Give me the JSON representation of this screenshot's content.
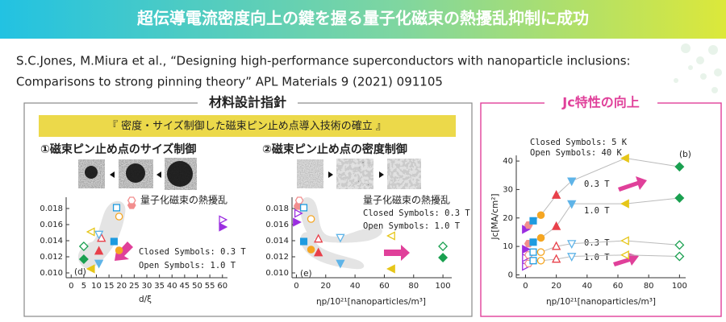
{
  "header": {
    "title": "超伝導電流密度向上の鍵を握る量子化磁束の熱擾乱抑制に成功"
  },
  "citation": [
    "S.C.Jones, M.Miura et al., “Designing high-performance superconductors with nanoparticle inclusions:",
    "Comparisons to strong pinning theory” APL Materials 9 (2021) 091105"
  ],
  "left_panel": {
    "title": "材料設計指針",
    "banner": "『 密度・サイズ制御した磁束ピン止め点導入技術の確立 』",
    "sections": [
      "①磁束ピン止め点のサイズ制御",
      "②磁束ピン止め点の密度制御"
    ]
  },
  "right_panel": {
    "title": "Jc特性の向上"
  },
  "chart_data": [
    {
      "type": "scatter",
      "panel_label": "(d)",
      "xlabel": "d/ξ",
      "annotations": [
        "量子化磁束の熱擾乱",
        "Closed Symbols: 0.3 T",
        "Open Symbols:   1.0 T"
      ],
      "xlim": [
        -2,
        62
      ],
      "xticks": [
        0,
        5,
        10,
        15,
        20,
        25,
        30,
        35,
        40,
        45,
        50,
        55,
        60
      ],
      "ylim": [
        0.0094,
        0.0194
      ],
      "yticks": [
        {
          "value": 0.01,
          "label": "0.010"
        },
        0.012,
        0.014,
        0.016,
        0.018
      ],
      "markers": [
        "tri-right",
        "hexagon",
        "square",
        "circle",
        "tri-up",
        "tri-down",
        "tri-left",
        "diamond"
      ],
      "colors": [
        "#9b2ee0",
        "#f28e8e",
        "#1e9be0",
        "#f5a623",
        "#e8404a",
        "#5fb4e8",
        "#e6c619",
        "#1aa050"
      ],
      "series": [
        {
          "filled": true,
          "x": [
            60,
            24,
            17,
            19,
            11,
            11,
            8,
            5
          ],
          "values": [
            0.0157,
            0.0184,
            0.0139,
            0.0128,
            0.0127,
            0.0112,
            0.0105,
            0.0117
          ]
        },
        {
          "filled": false,
          "x": [
            60,
            24,
            18,
            19,
            12,
            11,
            8,
            5
          ],
          "values": [
            0.0166,
            0.019,
            0.0181,
            0.017,
            0.0143,
            0.0148,
            0.0151,
            0.0133
          ]
        }
      ]
    },
    {
      "type": "scatter",
      "panel_label": "(e)",
      "xlabel": "ηp/10²¹[nanoparticles/m³]",
      "annotations": [
        "量子化磁束の熱擾乱",
        "Closed Symbols: 0.3 T",
        "Open Symbols:   1.0 T"
      ],
      "xlim": [
        -3,
        106
      ],
      "xticks": [
        0,
        20,
        40,
        60,
        80,
        100
      ],
      "ylim": [
        0.0094,
        0.0194
      ],
      "yticks": [
        {
          "value": 0.01,
          "label": "0.010"
        },
        0.012,
        0.014,
        0.016,
        0.018
      ],
      "markers": [
        "tri-right",
        "hexagon",
        "square",
        "circle",
        "tri-up",
        "tri-down",
        "tri-left",
        "diamond"
      ],
      "colors": [
        "#9b2ee0",
        "#f28e8e",
        "#1e9be0",
        "#f5a623",
        "#e8404a",
        "#5fb4e8",
        "#e6c619",
        "#1aa050"
      ],
      "series": [
        {
          "filled": true,
          "x": [
            0,
            1,
            5,
            10,
            15,
            30,
            65,
            100
          ],
          "values": [
            0.0163,
            0.0183,
            0.0139,
            0.0129,
            0.0125,
            0.0112,
            0.0105,
            0.0119
          ]
        },
        {
          "filled": false,
          "x": [
            1,
            2,
            5,
            10,
            15,
            30,
            65,
            100
          ],
          "values": [
            0.0174,
            0.019,
            0.0181,
            0.0167,
            0.0142,
            0.0144,
            0.0146,
            0.0133
          ]
        }
      ]
    },
    {
      "type": "line",
      "panel_label": "(b)",
      "xlabel": "ηp/10²¹[nanoparticles/m³]",
      "ylabel": "Jc[MA/cm²]",
      "annotations": [
        "Closed Symbols: 5 K",
        "Open Symbols: 40 K",
        "0.3 T",
        "1.0 T",
        "0.3 T",
        "1.0 T"
      ],
      "xlim": [
        -6,
        104
      ],
      "xticks": [
        0,
        20,
        40,
        60,
        80,
        100
      ],
      "ylim": [
        -1,
        42
      ],
      "yticks": [
        0,
        10,
        20,
        30,
        40
      ],
      "markers": [
        "tri-right",
        "hexagon",
        "square",
        "circle",
        "tri-up",
        "tri-down",
        "tri-left",
        "diamond"
      ],
      "colors": [
        "#9b2ee0",
        "#f28e8e",
        "#1e9be0",
        "#f5a623",
        "#e8404a",
        "#5fb4e8",
        "#e6c619",
        "#1aa050"
      ],
      "series": [
        {
          "filled": true,
          "x": [
            0,
            2,
            5,
            10,
            20,
            30,
            65,
            100
          ],
          "values": [
            16,
            17.5,
            19,
            21,
            28,
            33,
            41,
            38
          ]
        },
        {
          "filled": true,
          "x": [
            0,
            2,
            5,
            10,
            20,
            30,
            65,
            100
          ],
          "values": [
            9,
            11,
            11.5,
            13,
            17,
            25,
            25,
            27
          ]
        },
        {
          "filled": false,
          "x": [
            0,
            2,
            5,
            10,
            20,
            30,
            65,
            100
          ],
          "values": [
            6,
            7,
            8,
            8,
            10,
            11,
            12,
            10.5
          ]
        },
        {
          "filled": false,
          "x": [
            0,
            2,
            5,
            10,
            20,
            30,
            65,
            100
          ],
          "values": [
            3,
            4,
            5,
            5,
            5.5,
            6.5,
            7,
            6.5
          ]
        }
      ]
    }
  ]
}
